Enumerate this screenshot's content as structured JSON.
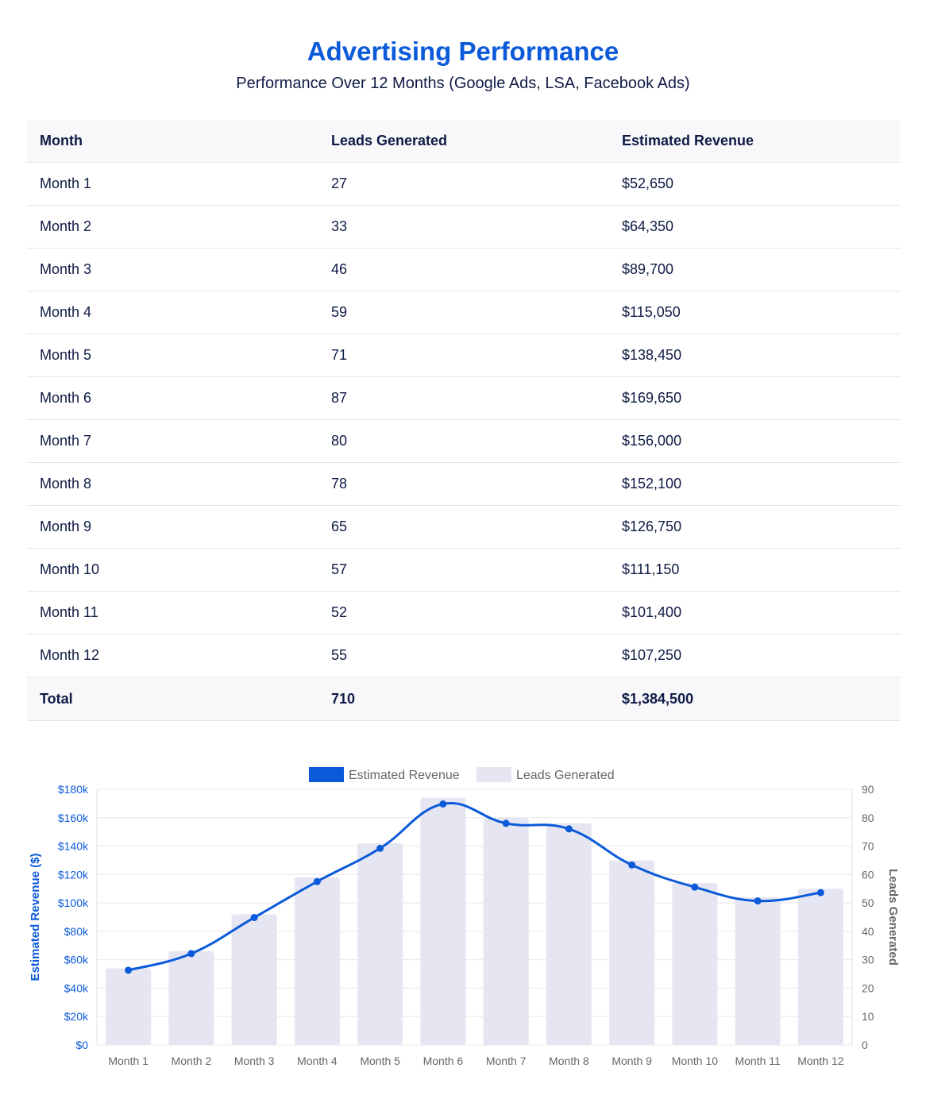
{
  "header": {
    "title": "Advertising Performance",
    "subtitle": "Performance Over 12 Months (Google Ads, LSA, Facebook Ads)"
  },
  "table": {
    "columns": [
      "Month",
      "Leads Generated",
      "Estimated Revenue"
    ],
    "rows": [
      [
        "Month 1",
        "27",
        "$52,650"
      ],
      [
        "Month 2",
        "33",
        "$64,350"
      ],
      [
        "Month 3",
        "46",
        "$89,700"
      ],
      [
        "Month 4",
        "59",
        "$115,050"
      ],
      [
        "Month 5",
        "71",
        "$138,450"
      ],
      [
        "Month 6",
        "87",
        "$169,650"
      ],
      [
        "Month 7",
        "80",
        "$156,000"
      ],
      [
        "Month 8",
        "78",
        "$152,100"
      ],
      [
        "Month 9",
        "65",
        "$126,750"
      ],
      [
        "Month 10",
        "57",
        "$111,150"
      ],
      [
        "Month 11",
        "52",
        "$101,400"
      ],
      [
        "Month 12",
        "55",
        "$107,250"
      ]
    ],
    "total": [
      "Total",
      "710",
      "$1,384,500"
    ]
  },
  "chart_data": {
    "type": "bar",
    "categories": [
      "Month 1",
      "Month 2",
      "Month 3",
      "Month 4",
      "Month 5",
      "Month 6",
      "Month 7",
      "Month 8",
      "Month 9",
      "Month 10",
      "Month 11",
      "Month 12"
    ],
    "series": [
      {
        "name": "Estimated Revenue",
        "type": "line",
        "axis": "left",
        "color": "#0b5ad9",
        "values": [
          52650,
          64350,
          89700,
          115050,
          138450,
          169650,
          156000,
          152100,
          126750,
          111150,
          101400,
          107250
        ]
      },
      {
        "name": "Leads Generated",
        "type": "bar",
        "axis": "right",
        "color": "#e6e6f3",
        "values": [
          27,
          33,
          46,
          59,
          71,
          87,
          80,
          78,
          65,
          57,
          52,
          55
        ]
      }
    ],
    "y_left": {
      "label": "Estimated Revenue ($)",
      "ylim": [
        0,
        180000
      ],
      "ticks": [
        "$0",
        "$20k",
        "$40k",
        "$60k",
        "$80k",
        "$100k",
        "$120k",
        "$140k",
        "$160k",
        "$180k"
      ],
      "color": "#0b5ad9"
    },
    "y_right": {
      "label": "Leads Generated",
      "ylim": [
        0,
        90
      ],
      "ticks": [
        "0",
        "10",
        "20",
        "30",
        "40",
        "50",
        "60",
        "70",
        "80",
        "90"
      ],
      "color": "#666666"
    },
    "grid": true,
    "legend": "top-center"
  }
}
